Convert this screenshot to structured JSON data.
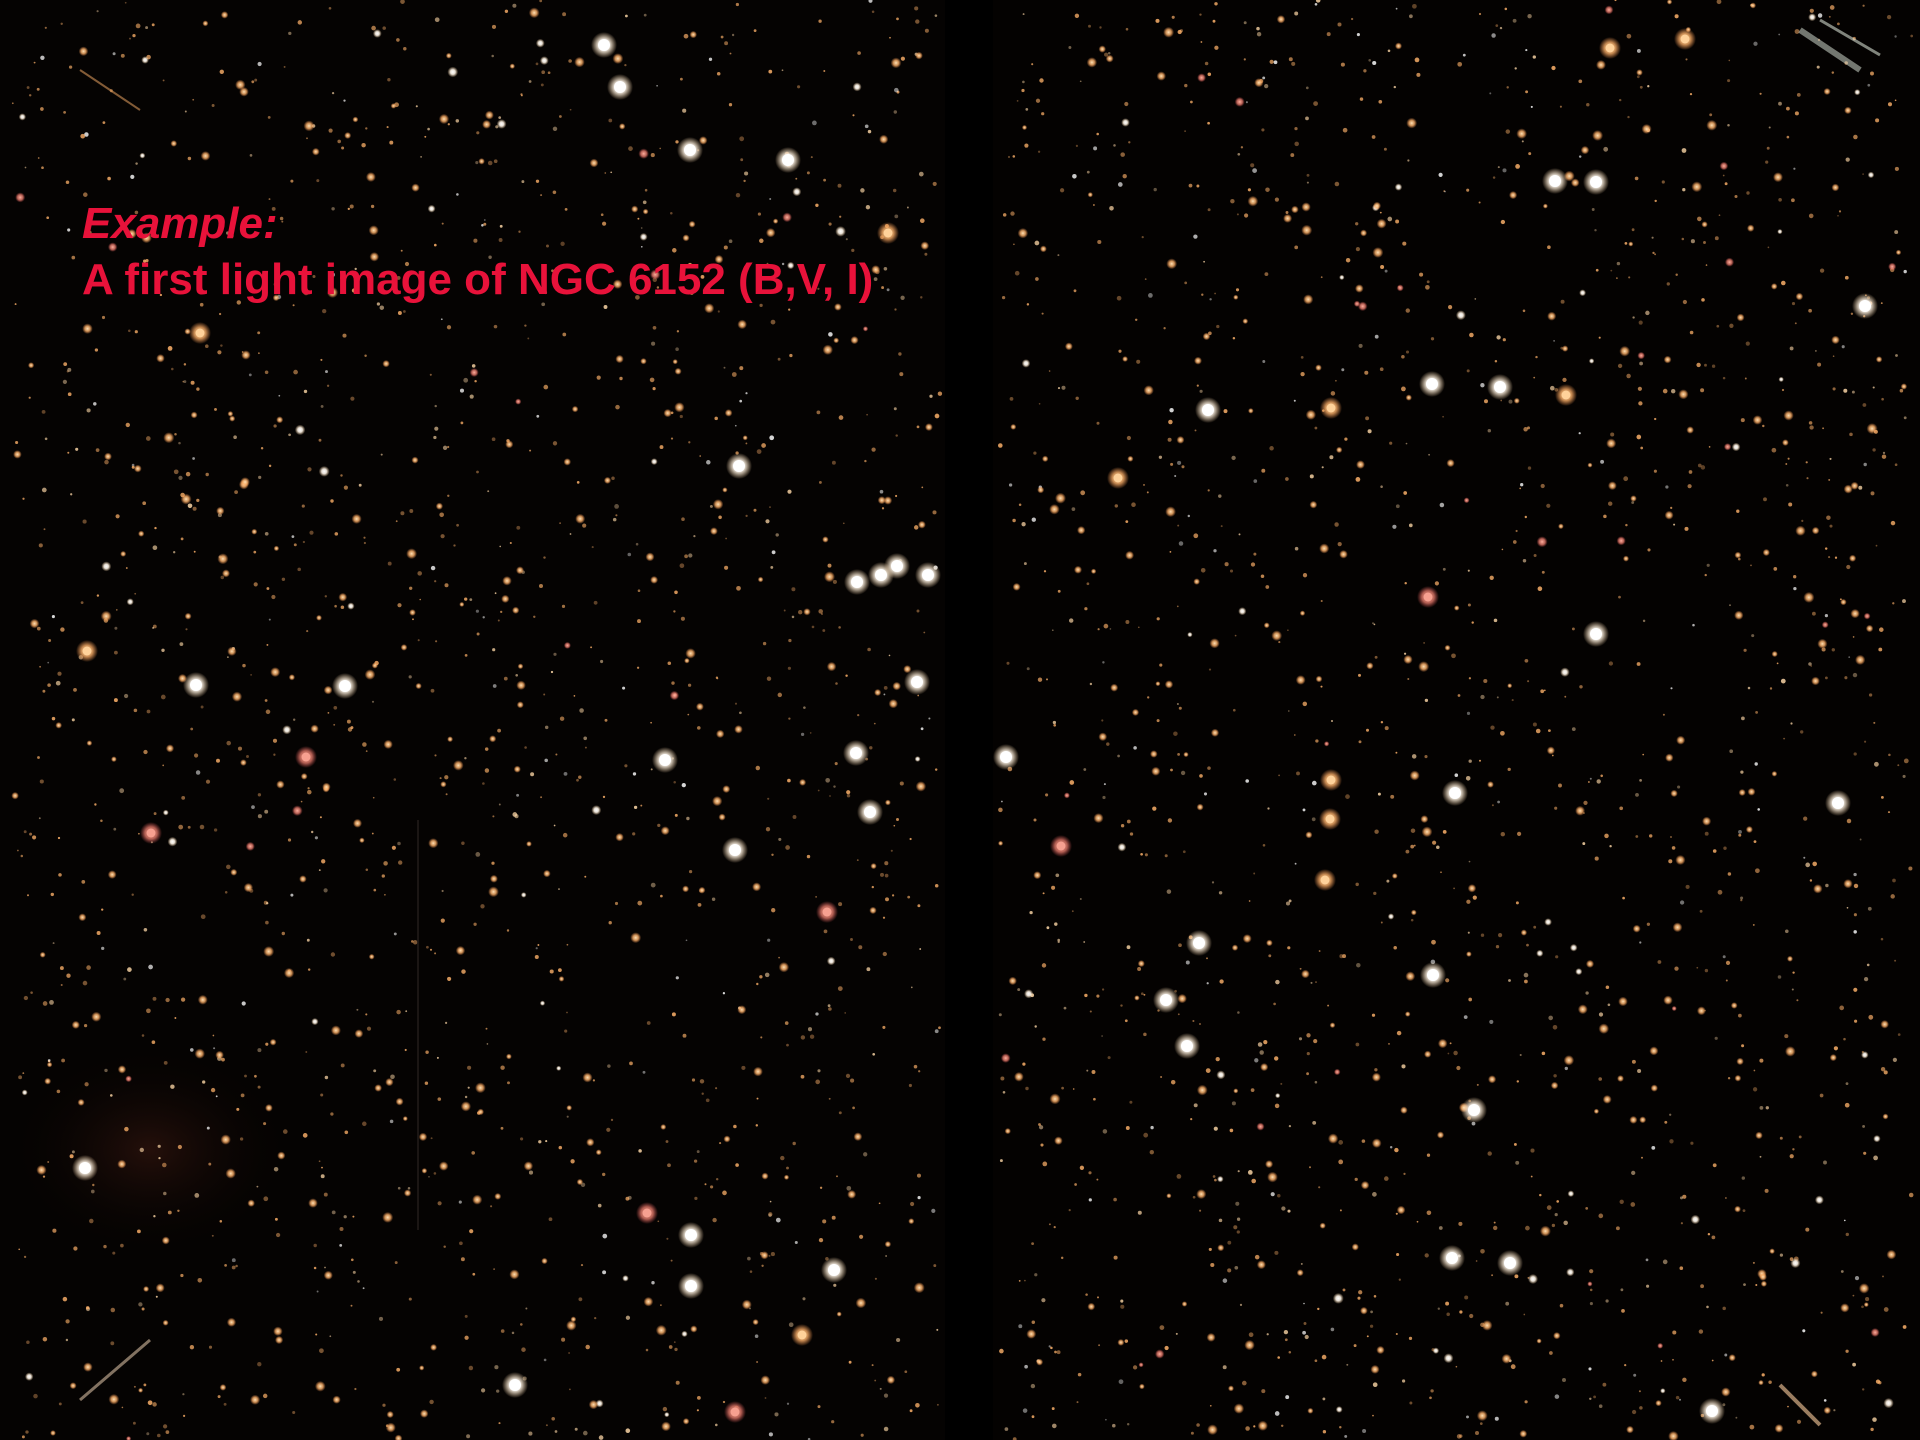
{
  "caption": {
    "line1": "Example:",
    "line2": "A first light image of NGC 6152 (B,V, I)",
    "color": "#e8123a"
  },
  "image": {
    "subject": "star field",
    "background_color": "#000000",
    "star_colors": [
      "#ffffff",
      "#ffd9a8",
      "#ffb36b",
      "#ff9a70",
      "#f08070"
    ]
  }
}
